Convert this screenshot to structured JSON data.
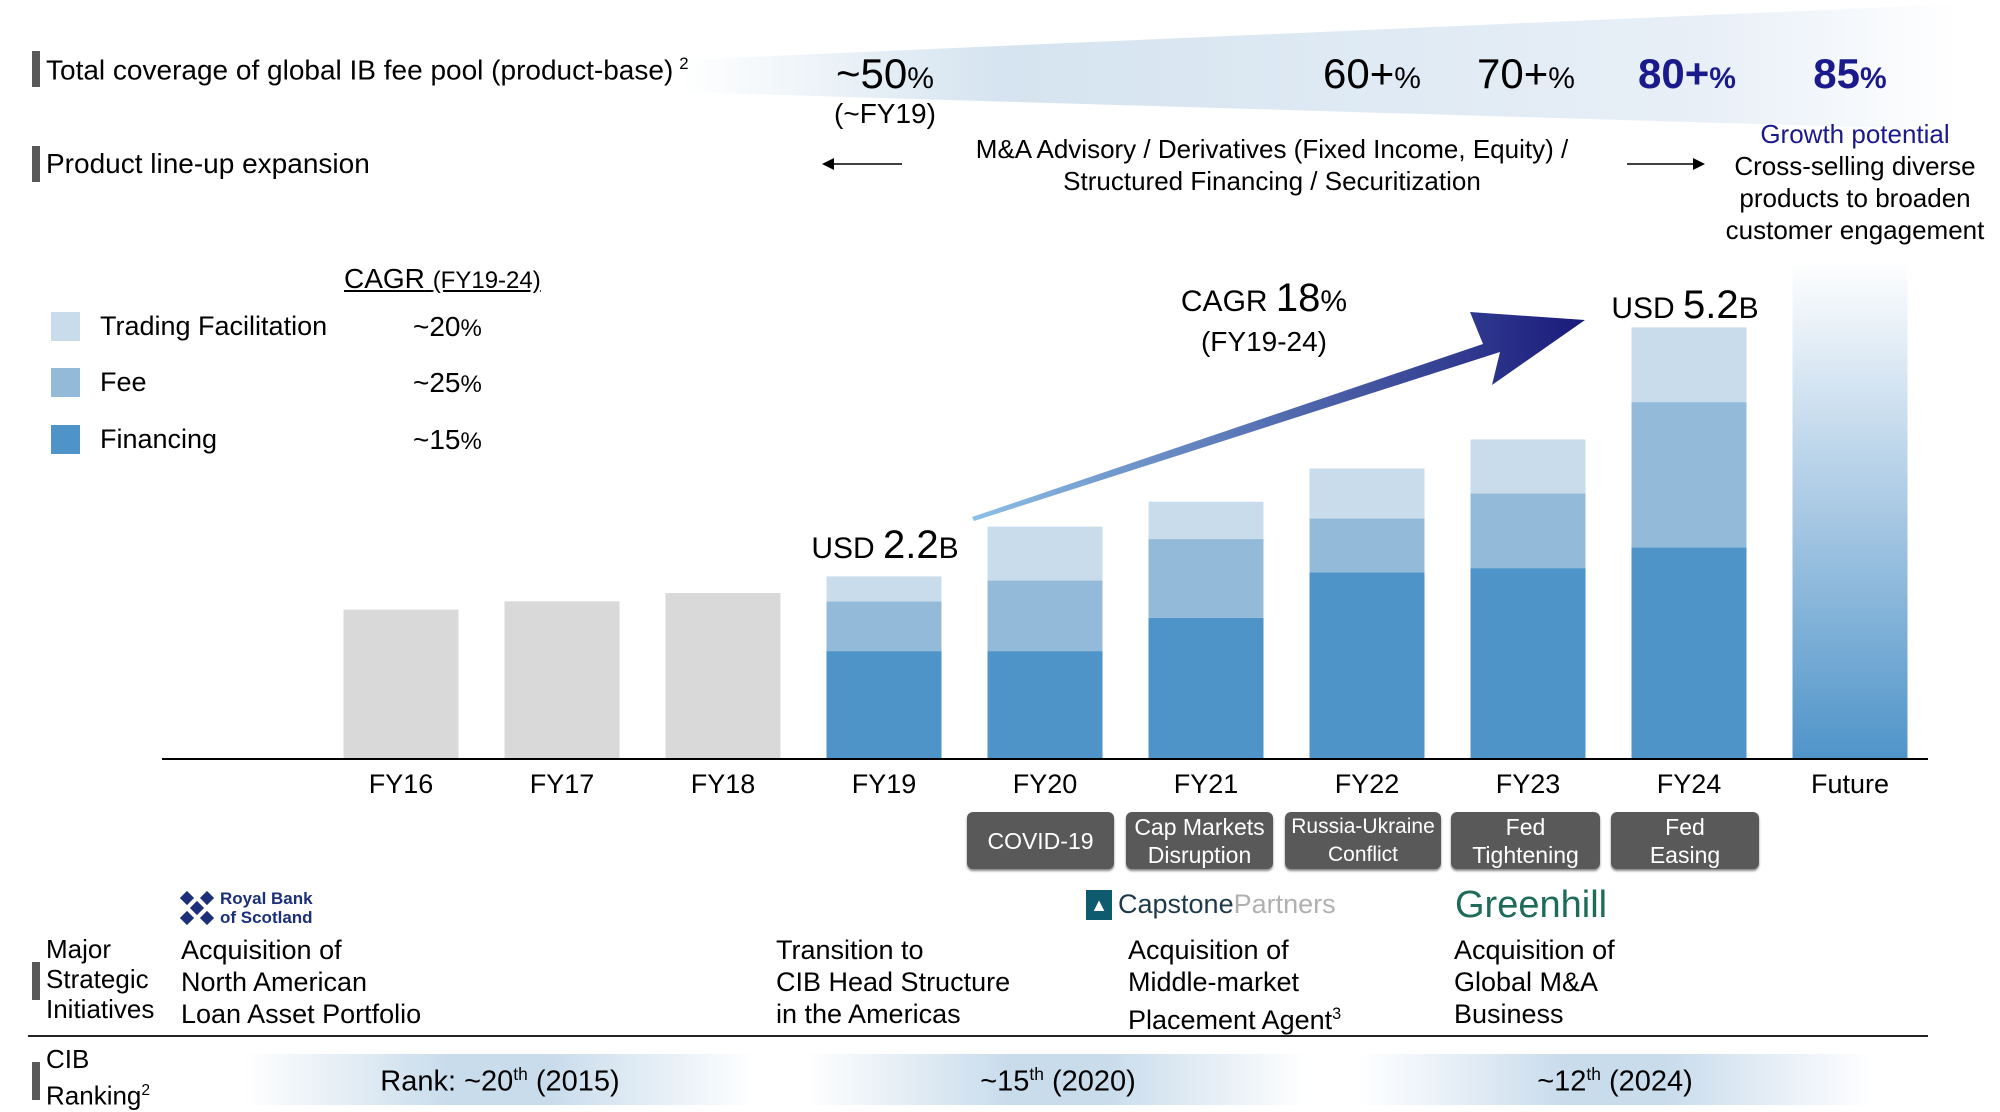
{
  "header": {
    "coverage_label": "Total coverage of global IB fee pool (product-base)",
    "coverage_sup": "2",
    "coverage_values": [
      {
        "value": "~50",
        "unit": "%",
        "sub": "(~FY19)"
      },
      {
        "value": "60+",
        "unit": "%"
      },
      {
        "value": "70+",
        "unit": "%"
      },
      {
        "value": "80+",
        "unit": "%"
      },
      {
        "value": "85",
        "unit": "%"
      }
    ],
    "product_label": "Product line-up expansion",
    "product_line1": "M&A Advisory / Derivatives (Fixed Income, Equity) /",
    "product_line2": "Structured Financing / Securitization",
    "growth_title": "Growth potential",
    "growth_lines": [
      "Cross-selling diverse",
      "products to broaden",
      "customer engagement"
    ]
  },
  "legend": {
    "title": "CAGR",
    "title_sub": "(FY19-24)",
    "items": [
      {
        "label": "Trading Facilitation",
        "cagr": "~20",
        "unit": "%",
        "color": "#c9dcec"
      },
      {
        "label": "Fee",
        "cagr": "~25",
        "unit": "%",
        "color": "#93bbd9"
      },
      {
        "label": "Financing",
        "cagr": "~15",
        "unit": "%",
        "color": "#4f94c9"
      }
    ]
  },
  "chart_data": {
    "type": "bar",
    "stacked": true,
    "unit": "USD B",
    "categories": [
      "FY16",
      "FY17",
      "FY18",
      "FY19",
      "FY20",
      "FY21",
      "FY22",
      "FY23",
      "FY24",
      "Future"
    ],
    "pre_period_totals": {
      "FY16": 1.8,
      "FY17": 1.9,
      "FY18": 2.0
    },
    "series": [
      {
        "name": "Financing",
        "values": [
          null,
          null,
          null,
          1.3,
          1.3,
          1.7,
          2.25,
          2.3,
          2.55,
          null
        ]
      },
      {
        "name": "Fee",
        "values": [
          null,
          null,
          null,
          0.6,
          0.85,
          0.95,
          0.65,
          0.9,
          1.75,
          null
        ]
      },
      {
        "name": "Trading Facilitation",
        "values": [
          null,
          null,
          null,
          0.3,
          0.65,
          0.45,
          0.6,
          0.65,
          0.9,
          null
        ]
      }
    ],
    "future_indicative_total": 6.0,
    "ylim": [
      0,
      6.2
    ],
    "annotations": {
      "fy19_label_pre": "USD",
      "fy19_label_value": "2.2",
      "fy19_label_unit": "B",
      "fy24_label_pre": "USD",
      "fy24_label_value": "5.2",
      "fy24_label_unit": "B",
      "cagr_pre": "CAGR",
      "cagr_value": "18",
      "cagr_unit": "%",
      "cagr_period": "(FY19-24)"
    },
    "colors": {
      "pre_period": "#d9d9d9",
      "arrow_start": "#8cc0e6",
      "arrow_end": "#1a1a7a"
    }
  },
  "events": [
    {
      "label": "COVID-19"
    },
    {
      "label": "Cap Markets Disruption"
    },
    {
      "label": "Russia-Ukraine Conflict"
    },
    {
      "label": "Fed Tightening"
    },
    {
      "label": "Fed Easing"
    }
  ],
  "initiatives": {
    "label_lines": [
      "Major",
      "Strategic",
      "Initiatives"
    ],
    "logos": {
      "rbs": "Royal Bank of Scotland",
      "capstone_a": "Capstone",
      "capstone_b": "Partners",
      "greenhill": "Greenhill"
    },
    "items": [
      {
        "lines": [
          "Acquisition of",
          "North American",
          "Loan Asset Portfolio"
        ]
      },
      {
        "lines": [
          "Transition to",
          "CIB Head Structure",
          "in the Americas"
        ]
      },
      {
        "lines": [
          "Acquisition of",
          "Middle-market",
          "Placement Agent"
        ],
        "sup": "3"
      },
      {
        "lines": [
          "Acquisition of",
          "Global M&A",
          "Business"
        ]
      }
    ]
  },
  "ranking": {
    "label_lines": [
      "CIB",
      "Ranking"
    ],
    "label_sup": "2",
    "items": [
      {
        "pre": "Rank: ~20",
        "sup": "th",
        "post": " (2015)"
      },
      {
        "pre": "~15",
        "sup": "th",
        "post": " (2020)"
      },
      {
        "pre": "~12",
        "sup": "th",
        "post": " (2024)"
      }
    ]
  }
}
